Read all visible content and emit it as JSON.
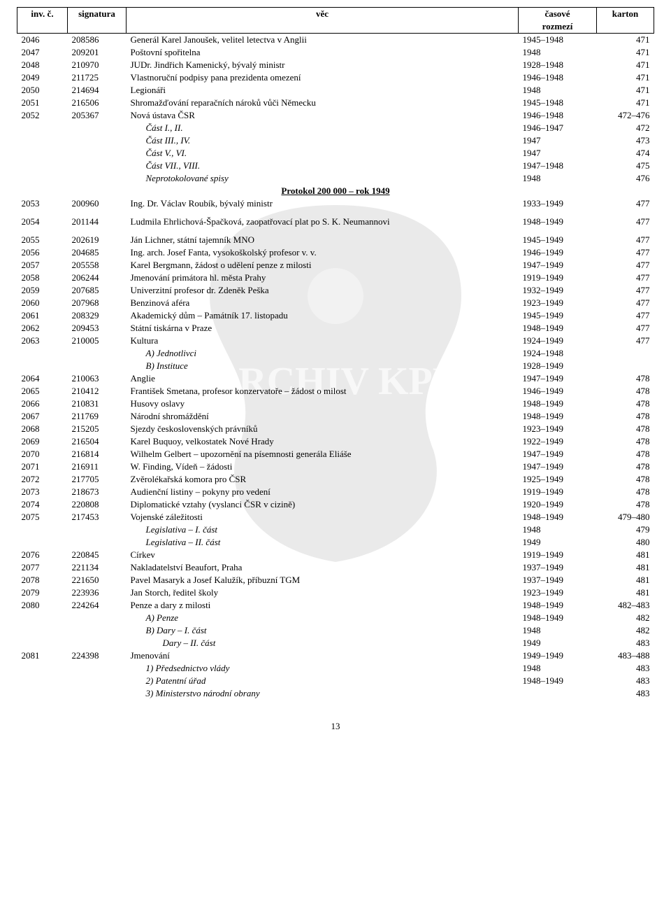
{
  "header": {
    "col1": "inv. č.",
    "col2": "signatura",
    "col3": "věc",
    "col4a": "časové",
    "col4b": "rozmezí",
    "col5": "karton"
  },
  "footer": "13",
  "section_title": "Protokol 200 000 – rok 1949",
  "rows": [
    {
      "inv": "2046",
      "sig": "208586",
      "vec": "Generál Karel Janoušek, velitel letectva v Anglii",
      "roz": "1945–1948",
      "kar": "471"
    },
    {
      "inv": "2047",
      "sig": "209201",
      "vec": "Poštovní spořitelna",
      "roz": "1948",
      "kar": "471"
    },
    {
      "inv": "2048",
      "sig": "210970",
      "vec": "JUDr. Jindřich Kamenický, bývalý ministr",
      "roz": "1928–1948",
      "kar": "471"
    },
    {
      "inv": "2049",
      "sig": "211725",
      "vec": "Vlastnoruční podpisy pana prezidenta omezení",
      "roz": "1946–1948",
      "kar": "471"
    },
    {
      "inv": "2050",
      "sig": "214694",
      "vec": "Legionáři",
      "roz": "1948",
      "kar": "471"
    },
    {
      "inv": "2051",
      "sig": "216506",
      "vec": "Shromažďování reparačních nároků vůči Německu",
      "roz": "1945–1948",
      "kar": "471"
    },
    {
      "inv": "2052",
      "sig": "205367",
      "vec": "Nová ústava ČSR",
      "roz": "1946–1948",
      "kar": "472–476"
    },
    {
      "vec": "Část I., II.",
      "roz": "1946–1947",
      "kar": "472",
      "italic": true,
      "indent": 1
    },
    {
      "vec": "Část III., IV.",
      "roz": "1947",
      "kar": "473",
      "italic": true,
      "indent": 1
    },
    {
      "vec": "Část V., VI.",
      "roz": "1947",
      "kar": "474",
      "italic": true,
      "indent": 1
    },
    {
      "vec": "Část VII., VIII.",
      "roz": "1947–1948",
      "kar": "475",
      "italic": true,
      "indent": 1
    },
    {
      "vec": "Neprotokolované spisy",
      "roz": "1948",
      "kar": "476",
      "italic": true,
      "indent": 1
    },
    {
      "section": true
    },
    {
      "inv": "2053",
      "sig": "200960",
      "vec": "Ing. Dr. Václav Roubík, bývalý ministr",
      "roz": "1933–1949",
      "kar": "477"
    },
    {
      "inv": "2054",
      "sig": "201144",
      "vec": "Ludmila Ehrlichová-Špačková, zaopatřovací plat po S. K. Neumannovi",
      "roz": "1948–1949",
      "kar": "477",
      "spacer": true
    },
    {
      "inv": "2055",
      "sig": "202619",
      "vec": "Ján Lichner, státní tajemník MNO",
      "roz": "1945–1949",
      "kar": "477",
      "spacer": true
    },
    {
      "inv": "2056",
      "sig": "204685",
      "vec": "Ing. arch. Josef Fanta, vysokoškolský profesor v. v.",
      "roz": "1946–1949",
      "kar": "477"
    },
    {
      "inv": "2057",
      "sig": "205558",
      "vec": "Karel Bergmann, žádost o udělení penze z milosti",
      "roz": "1947–1949",
      "kar": "477"
    },
    {
      "inv": "2058",
      "sig": "206244",
      "vec": "Jmenování primátora hl. města Prahy",
      "roz": "1919–1949",
      "kar": "477"
    },
    {
      "inv": "2059",
      "sig": "207685",
      "vec": "Univerzitní profesor dr. Zdeněk Peška",
      "roz": "1932–1949",
      "kar": "477"
    },
    {
      "inv": "2060",
      "sig": "207968",
      "vec": "Benzinová aféra",
      "roz": "1923–1949",
      "kar": "477"
    },
    {
      "inv": "2061",
      "sig": "208329",
      "vec": "Akademický dům – Památník 17. listopadu",
      "roz": "1945–1949",
      "kar": "477"
    },
    {
      "inv": "2062",
      "sig": "209453",
      "vec": "Státní tiskárna v Praze",
      "roz": "1948–1949",
      "kar": "477"
    },
    {
      "inv": "2063",
      "sig": "210005",
      "vec": "Kultura",
      "roz": "1924–1949",
      "kar": "477"
    },
    {
      "vec": "A) Jednotlivci",
      "roz": "1924–1948",
      "italic": true,
      "indent": 1
    },
    {
      "vec": "B) Instituce",
      "roz": "1928–1949",
      "italic": true,
      "indent": 1
    },
    {
      "inv": "2064",
      "sig": "210063",
      "vec": "Anglie",
      "roz": "1947–1949",
      "kar": "478"
    },
    {
      "inv": "2065",
      "sig": "210412",
      "vec": "František Smetana, profesor konzervatoře – žádost o milost",
      "roz": "1946–1949",
      "kar": "478"
    },
    {
      "inv": "2066",
      "sig": "210831",
      "vec": "Husovy oslavy",
      "roz": "1948–1949",
      "kar": "478"
    },
    {
      "inv": "2067",
      "sig": "211769",
      "vec": "Národní shromáždění",
      "roz": "1948–1949",
      "kar": "478"
    },
    {
      "inv": "2068",
      "sig": "215205",
      "vec": "Sjezdy československých právníků",
      "roz": "1923–1949",
      "kar": "478"
    },
    {
      "inv": "2069",
      "sig": "216504",
      "vec": "Karel Buquoy, velkostatek Nové Hrady",
      "roz": "1922–1949",
      "kar": "478"
    },
    {
      "inv": "2070",
      "sig": "216814",
      "vec": "Wilhelm Gelbert – upozornění na písemnosti generála Eliáše",
      "roz": "1947–1949",
      "kar": "478"
    },
    {
      "inv": "2071",
      "sig": "216911",
      "vec": "W. Finding, Vídeň – žádosti",
      "roz": "1947–1949",
      "kar": "478"
    },
    {
      "inv": "2072",
      "sig": "217705",
      "vec": "Zvěrolékařská komora pro ČSR",
      "roz": "1925–1949",
      "kar": "478"
    },
    {
      "inv": "2073",
      "sig": "218673",
      "vec": "Audienční listiny – pokyny pro vedení",
      "roz": "1919–1949",
      "kar": "478"
    },
    {
      "inv": "2074",
      "sig": "220808",
      "vec": "Diplomatické vztahy (vyslanci ČSR v cizině)",
      "roz": "1920–1949",
      "kar": "478"
    },
    {
      "inv": "2075",
      "sig": "217453",
      "vec": "Vojenské záležitosti",
      "roz": "1948–1949",
      "kar": "479–480"
    },
    {
      "vec": "Legislativa – I. část",
      "roz": "1948",
      "kar": "479",
      "italic": true,
      "indent": 1
    },
    {
      "vec": "Legislativa – II. část",
      "roz": "1949",
      "kar": "480",
      "italic": true,
      "indent": 1
    },
    {
      "inv": "2076",
      "sig": "220845",
      "vec": "Církev",
      "roz": "1919–1949",
      "kar": "481"
    },
    {
      "inv": "2077",
      "sig": "221134",
      "vec": "Nakladatelství Beaufort, Praha",
      "roz": "1937–1949",
      "kar": "481"
    },
    {
      "inv": "2078",
      "sig": "221650",
      "vec": "Pavel Masaryk a Josef Kalužík, příbuzní TGM",
      "roz": "1937–1949",
      "kar": "481"
    },
    {
      "inv": "2079",
      "sig": "223936",
      "vec": "Jan Storch, ředitel školy",
      "roz": "1923–1949",
      "kar": "481"
    },
    {
      "inv": "2080",
      "sig": "224264",
      "vec": "Penze a dary z milosti",
      "roz": "1948–1949",
      "kar": "482–483"
    },
    {
      "vec": "A) Penze",
      "roz": "1948–1949",
      "kar": "482",
      "italic": true,
      "indent": 1
    },
    {
      "vec": "B) Dary – I. část",
      "roz": "1948",
      "kar": "482",
      "italic": true,
      "indent": 1
    },
    {
      "vec": "Dary – II. část",
      "roz": "1949",
      "kar": "483",
      "italic": true,
      "indent": 2
    },
    {
      "inv": "2081",
      "sig": "224398",
      "vec": "Jmenování",
      "roz": "1949–1949",
      "kar": "483–488"
    },
    {
      "vec": "1) Předsednictvo vlády",
      "roz": "1948",
      "kar": "483",
      "italic": true,
      "indent": 1
    },
    {
      "vec": "2) Patentní úřad",
      "roz": "1948–1949",
      "kar": "483",
      "italic": true,
      "indent": 1
    },
    {
      "vec": "3) Ministerstvo národní obrany",
      "kar": "483",
      "italic": true,
      "indent": 1
    }
  ]
}
